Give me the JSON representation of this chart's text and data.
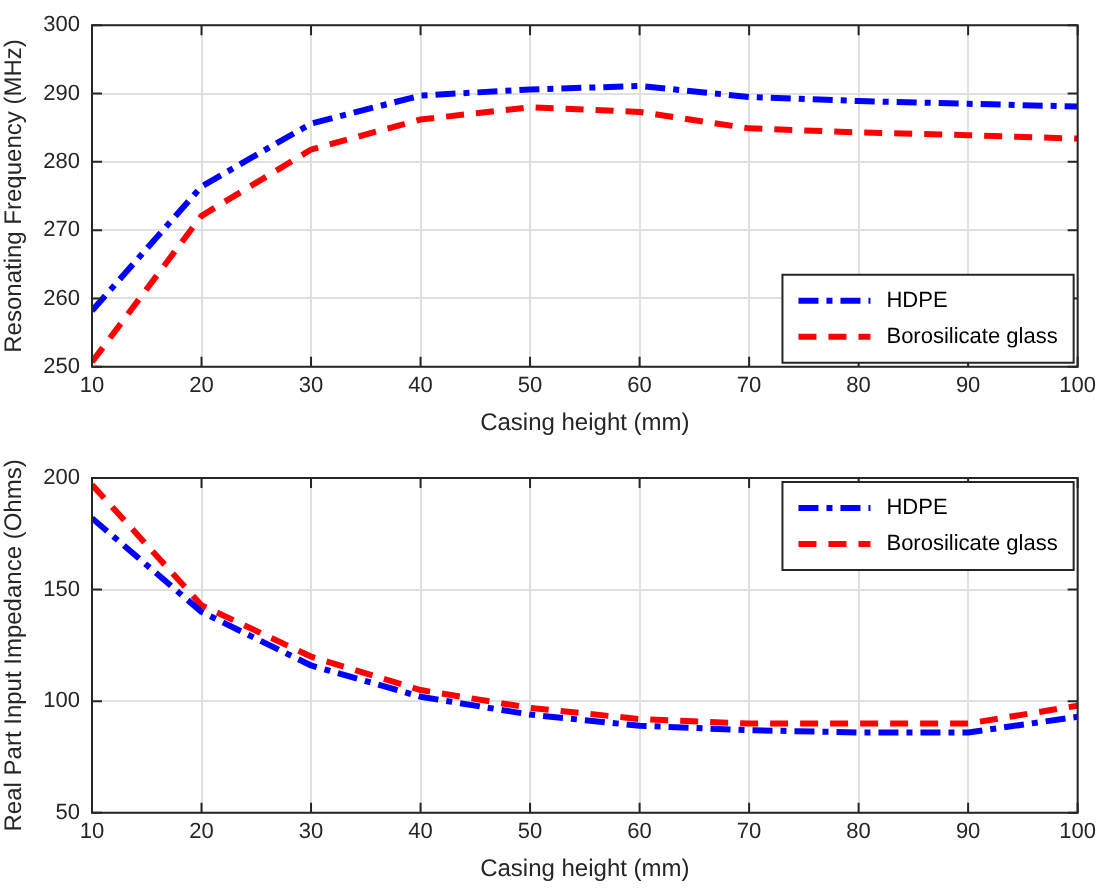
{
  "chart_data": [
    {
      "type": "line",
      "xlabel": "Casing height (mm)",
      "ylabel": "Resonating Frequency (MHz)",
      "x": [
        10,
        20,
        30,
        40,
        50,
        60,
        70,
        80,
        90,
        100
      ],
      "xlim": [
        10,
        100
      ],
      "xticks": [
        10,
        20,
        30,
        40,
        50,
        60,
        70,
        80,
        90,
        100
      ],
      "ylim": [
        250,
        300
      ],
      "yticks": [
        250,
        260,
        270,
        280,
        290,
        300
      ],
      "grid": true,
      "legend": "bottom right",
      "marker": "none",
      "series": [
        {
          "name": "HDPE",
          "color": "#0000ff",
          "line_style": "dashdot",
          "values": [
            258.2,
            276.4,
            285.6,
            289.7,
            290.6,
            291.1,
            289.5,
            288.9,
            288.5,
            288.1
          ]
        },
        {
          "name": "Borosilicate glass",
          "color": "#ff0000",
          "line_style": "dashed",
          "values": [
            250.7,
            272.1,
            281.8,
            286.2,
            288.0,
            287.3,
            284.9,
            284.3,
            283.9,
            283.4
          ]
        }
      ]
    },
    {
      "type": "line",
      "xlabel": "Casing height (mm)",
      "ylabel": "Real Part Input Impedance (Ohms)",
      "x": [
        10,
        20,
        30,
        40,
        50,
        60,
        70,
        80,
        90,
        100
      ],
      "xlim": [
        10,
        100
      ],
      "xticks": [
        10,
        20,
        30,
        40,
        50,
        60,
        70,
        80,
        90,
        100
      ],
      "ylim": [
        50,
        200
      ],
      "yticks": [
        50,
        100,
        150,
        200
      ],
      "grid": true,
      "legend": "top right",
      "marker": "none",
      "series": [
        {
          "name": "HDPE",
          "color": "#0000ff",
          "line_style": "dashdot",
          "values": [
            182,
            140,
            116,
            102,
            94,
            89,
            87,
            86,
            86,
            93
          ]
        },
        {
          "name": "Borosilicate glass",
          "color": "#ff0000",
          "line_style": "dashed",
          "values": [
            197,
            143,
            120,
            105,
            97,
            92,
            90,
            90,
            90,
            98
          ]
        }
      ]
    }
  ]
}
